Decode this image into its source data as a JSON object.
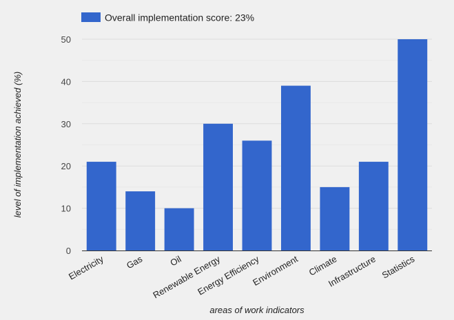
{
  "chart_data": {
    "type": "bar",
    "legend": {
      "label": "Overall implementation score: 23%",
      "placement": "top-left"
    },
    "categories": [
      "Electricity",
      "Gas",
      "Oil",
      "Renewable Energy",
      "Energy Efficiency",
      "Environment",
      "Climate",
      "Infrastructure",
      "Statistics"
    ],
    "values": [
      21,
      14,
      10,
      30,
      26,
      39,
      15,
      21,
      50
    ],
    "ylabel": "level of implementation achieved (%)",
    "xlabel": "areas of work indicators",
    "ylim": [
      0,
      50
    ],
    "yticks": [
      0,
      10,
      20,
      30,
      40,
      50
    ],
    "minor_gridlines": true,
    "colors": {
      "bar": "#3366cc",
      "background": "#f0f0f0",
      "grid": "#dcdcdc",
      "minor_grid": "#e8e8e8",
      "axis": "#333333",
      "text": "#222222",
      "tick_text": "#444444"
    }
  }
}
